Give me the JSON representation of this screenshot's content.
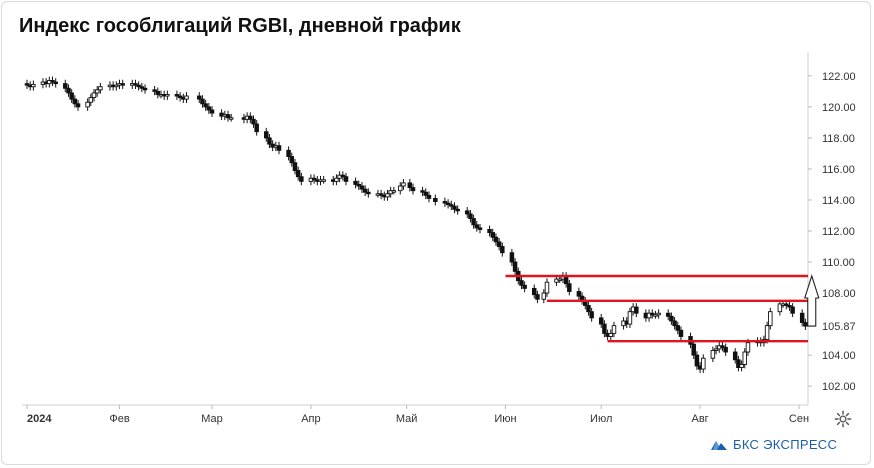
{
  "title": "Индекс гособлигаций RGBI, дневной график",
  "logo": {
    "text": "БКС ЭКСПРЕСС",
    "icon": "bks-logo-icon"
  },
  "settings_icon": "gear-icon",
  "colors": {
    "candle": "#111111",
    "level": "#e0141f",
    "arrow": "#222222",
    "logo": "#1d5fa8"
  },
  "chart_data": {
    "type": "candlestick",
    "title": "Индекс гособлигаций RGBI, дневной график",
    "x_ticks": [
      "2024",
      "Фев",
      "Мар",
      "Апр",
      "Май",
      "Июн",
      "Июл",
      "Авг",
      "Сен"
    ],
    "x_tick_dates": [
      "2024-01-03",
      "2024-02-01",
      "2024-03-01",
      "2024-04-01",
      "2024-05-01",
      "2024-06-01",
      "2024-07-01",
      "2024-08-01",
      "2024-09-01"
    ],
    "y_ticks": [
      "122.00",
      "120.00",
      "118.00",
      "116.00",
      "114.00",
      "112.00",
      "110.00",
      "108.00",
      "105.87",
      "104.00",
      "102.00"
    ],
    "ylim": [
      101.3,
      122.7
    ],
    "last_price": "105.87",
    "daily_close": [
      [
        "2024-01-03",
        121.4
      ],
      [
        "2024-01-04",
        121.3
      ],
      [
        "2024-01-05",
        121.45
      ],
      [
        "2024-01-08",
        121.6
      ],
      [
        "2024-01-09",
        121.5
      ],
      [
        "2024-01-10",
        121.7
      ],
      [
        "2024-01-11",
        121.6
      ],
      [
        "2024-01-12",
        121.5
      ],
      [
        "2024-01-15",
        121.2
      ],
      [
        "2024-01-16",
        120.9
      ],
      [
        "2024-01-17",
        120.5
      ],
      [
        "2024-01-18",
        120.2
      ],
      [
        "2024-01-19",
        120.0
      ],
      [
        "2024-01-22",
        120.3
      ],
      [
        "2024-01-23",
        120.6
      ],
      [
        "2024-01-24",
        120.9
      ],
      [
        "2024-01-25",
        121.1
      ],
      [
        "2024-01-26",
        121.3
      ],
      [
        "2024-01-29",
        121.4
      ],
      [
        "2024-01-30",
        121.3
      ],
      [
        "2024-01-31",
        121.4
      ],
      [
        "2024-02-01",
        121.5
      ],
      [
        "2024-02-02",
        121.4
      ],
      [
        "2024-02-05",
        121.5
      ],
      [
        "2024-02-06",
        121.4
      ],
      [
        "2024-02-07",
        121.3
      ],
      [
        "2024-02-08",
        121.2
      ],
      [
        "2024-02-09",
        121.1
      ],
      [
        "2024-02-12",
        121.0
      ],
      [
        "2024-02-13",
        120.8
      ],
      [
        "2024-02-14",
        120.8
      ],
      [
        "2024-02-15",
        120.7
      ],
      [
        "2024-02-16",
        120.8
      ],
      [
        "2024-02-19",
        120.7
      ],
      [
        "2024-02-20",
        120.6
      ],
      [
        "2024-02-21",
        120.5
      ],
      [
        "2024-02-22",
        120.7
      ],
      [
        "2024-02-26",
        120.5
      ],
      [
        "2024-02-27",
        120.2
      ],
      [
        "2024-02-28",
        120.0
      ],
      [
        "2024-02-29",
        119.8
      ],
      [
        "2024-03-01",
        119.6
      ],
      [
        "2024-03-04",
        119.4
      ],
      [
        "2024-03-05",
        119.5
      ],
      [
        "2024-03-06",
        119.3
      ],
      [
        "2024-03-07",
        119.3
      ],
      [
        "2024-03-11",
        119.2
      ],
      [
        "2024-03-12",
        119.4
      ],
      [
        "2024-03-13",
        119.2
      ],
      [
        "2024-03-14",
        118.9
      ],
      [
        "2024-03-15",
        118.4
      ],
      [
        "2024-03-18",
        118.0
      ],
      [
        "2024-03-19",
        117.6
      ],
      [
        "2024-03-20",
        117.4
      ],
      [
        "2024-03-21",
        117.5
      ],
      [
        "2024-03-22",
        117.2
      ],
      [
        "2024-03-25",
        116.8
      ],
      [
        "2024-03-26",
        116.4
      ],
      [
        "2024-03-27",
        115.9
      ],
      [
        "2024-03-28",
        115.5
      ],
      [
        "2024-03-29",
        115.2
      ],
      [
        "2024-04-01",
        115.4
      ],
      [
        "2024-04-02",
        115.3
      ],
      [
        "2024-04-03",
        115.2
      ],
      [
        "2024-04-04",
        115.3
      ],
      [
        "2024-04-05",
        115.3
      ],
      [
        "2024-04-08",
        115.2
      ],
      [
        "2024-04-09",
        115.4
      ],
      [
        "2024-04-10",
        115.6
      ],
      [
        "2024-04-11",
        115.5
      ],
      [
        "2024-04-12",
        115.2
      ],
      [
        "2024-04-15",
        115.0
      ],
      [
        "2024-04-16",
        114.9
      ],
      [
        "2024-04-17",
        114.7
      ],
      [
        "2024-04-18",
        114.5
      ],
      [
        "2024-04-19",
        114.4
      ],
      [
        "2024-04-22",
        114.4
      ],
      [
        "2024-04-23",
        114.3
      ],
      [
        "2024-04-24",
        114.2
      ],
      [
        "2024-04-25",
        114.4
      ],
      [
        "2024-04-26",
        114.6
      ],
      [
        "2024-04-27",
        114.6
      ],
      [
        "2024-04-29",
        114.9
      ],
      [
        "2024-04-30",
        115.1
      ],
      [
        "2024-05-02",
        114.8
      ],
      [
        "2024-05-03",
        114.6
      ],
      [
        "2024-05-06",
        114.5
      ],
      [
        "2024-05-07",
        114.3
      ],
      [
        "2024-05-08",
        114.1
      ],
      [
        "2024-05-10",
        113.9
      ],
      [
        "2024-05-13",
        113.8
      ],
      [
        "2024-05-14",
        113.7
      ],
      [
        "2024-05-15",
        113.6
      ],
      [
        "2024-05-16",
        113.4
      ],
      [
        "2024-05-17",
        113.3
      ],
      [
        "2024-05-20",
        113.1
      ],
      [
        "2024-05-21",
        112.8
      ],
      [
        "2024-05-22",
        112.4
      ],
      [
        "2024-05-23",
        112.2
      ],
      [
        "2024-05-24",
        112.1
      ],
      [
        "2024-05-27",
        111.9
      ],
      [
        "2024-05-28",
        111.6
      ],
      [
        "2024-05-29",
        111.3
      ],
      [
        "2024-05-30",
        111.0
      ],
      [
        "2024-05-31",
        110.6
      ],
      [
        "2024-06-03",
        110.0
      ],
      [
        "2024-06-04",
        109.4
      ],
      [
        "2024-06-05",
        108.8
      ],
      [
        "2024-06-06",
        108.5
      ],
      [
        "2024-06-07",
        108.3
      ],
      [
        "2024-06-10",
        107.9
      ],
      [
        "2024-06-11",
        107.6
      ],
      [
        "2024-06-13",
        108.0
      ],
      [
        "2024-06-14",
        108.7
      ],
      [
        "2024-06-17",
        108.9
      ],
      [
        "2024-06-18",
        108.9
      ],
      [
        "2024-06-19",
        109.1
      ],
      [
        "2024-06-20",
        108.6
      ],
      [
        "2024-06-21",
        108.1
      ],
      [
        "2024-06-24",
        107.8
      ],
      [
        "2024-06-25",
        107.5
      ],
      [
        "2024-06-26",
        107.2
      ],
      [
        "2024-06-27",
        106.8
      ],
      [
        "2024-06-28",
        106.4
      ],
      [
        "2024-07-01",
        106.0
      ],
      [
        "2024-07-02",
        105.4
      ],
      [
        "2024-07-03",
        105.2
      ],
      [
        "2024-07-04",
        105.4
      ],
      [
        "2024-07-05",
        105.9
      ],
      [
        "2024-07-08",
        106.2
      ],
      [
        "2024-07-09",
        106.0
      ],
      [
        "2024-07-10",
        106.8
      ],
      [
        "2024-07-11",
        107.1
      ],
      [
        "2024-07-12",
        106.7
      ],
      [
        "2024-07-15",
        106.4
      ],
      [
        "2024-07-16",
        106.7
      ],
      [
        "2024-07-17",
        106.6
      ],
      [
        "2024-07-18",
        106.6
      ],
      [
        "2024-07-19",
        106.7
      ],
      [
        "2024-07-22",
        106.5
      ],
      [
        "2024-07-23",
        106.2
      ],
      [
        "2024-07-24",
        105.9
      ],
      [
        "2024-07-25",
        105.6
      ],
      [
        "2024-07-26",
        105.2
      ],
      [
        "2024-07-29",
        104.7
      ],
      [
        "2024-07-30",
        104.0
      ],
      [
        "2024-07-31",
        103.3
      ],
      [
        "2024-08-01",
        103.1
      ],
      [
        "2024-08-02",
        103.8
      ],
      [
        "2024-08-05",
        104.3
      ],
      [
        "2024-08-06",
        104.4
      ],
      [
        "2024-08-07",
        104.6
      ],
      [
        "2024-08-08",
        104.5
      ],
      [
        "2024-08-09",
        104.2
      ],
      [
        "2024-08-12",
        103.7
      ],
      [
        "2024-08-13",
        103.2
      ],
      [
        "2024-08-14",
        103.4
      ],
      [
        "2024-08-15",
        104.2
      ],
      [
        "2024-08-16",
        104.8
      ],
      [
        "2024-08-19",
        104.9
      ],
      [
        "2024-08-20",
        104.8
      ],
      [
        "2024-08-21",
        105.0
      ],
      [
        "2024-08-22",
        105.9
      ],
      [
        "2024-08-23",
        106.8
      ],
      [
        "2024-08-26",
        107.3
      ],
      [
        "2024-08-27",
        107.3
      ],
      [
        "2024-08-28",
        107.2
      ],
      [
        "2024-08-29",
        107.1
      ],
      [
        "2024-08-30",
        106.7
      ],
      [
        "2024-09-02",
        106.1
      ],
      [
        "2024-09-03",
        105.87
      ]
    ],
    "levels": [
      {
        "name": "resistance",
        "value": 109.1,
        "from": "2024-06-01",
        "to": "2024-10-01"
      },
      {
        "name": "mid",
        "value": 107.5,
        "from": "2024-06-14",
        "to": "2024-10-01"
      },
      {
        "name": "support",
        "value": 104.9,
        "from": "2024-07-03",
        "to": "2024-10-01"
      }
    ],
    "arrow": {
      "x": "2024-09-05",
      "from": 105.87,
      "to": 109.1
    },
    "grid": false,
    "legend": "none"
  }
}
